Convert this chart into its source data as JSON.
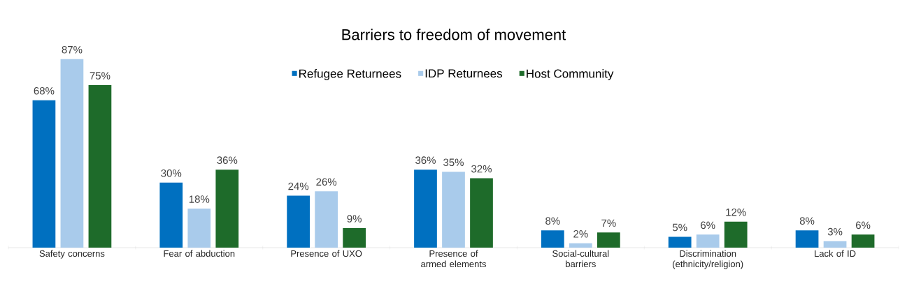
{
  "chart_data": {
    "type": "bar",
    "title": "Barriers to freedom of movement",
    "categories": [
      "Safety concerns",
      "Fear of abduction",
      "Presence of UXO",
      "Presence of armed elements",
      "Social-cultural barriers",
      "Discrimination (ethnicity/religion)",
      "Lack of ID"
    ],
    "series": [
      {
        "name": "Refugee Returnees",
        "color": "#0070c0",
        "values": [
          68,
          30,
          24,
          36,
          8,
          5,
          8
        ],
        "value_labels": [
          "68%",
          "30%",
          "24%",
          "36%",
          "8%",
          "5%",
          "8%"
        ]
      },
      {
        "name": "IDP Returnees",
        "color": "#a9cbeb",
        "values": [
          87,
          18,
          26,
          35,
          2,
          6,
          3
        ],
        "value_labels": [
          "87%",
          "18%",
          "26%",
          "35%",
          "2%",
          "6%",
          "3%"
        ]
      },
      {
        "name": "Host Community",
        "color": "#1e6b2a",
        "values": [
          75,
          36,
          9,
          32,
          7,
          12,
          6
        ],
        "value_labels": [
          "75%",
          "36%",
          "9%",
          "32%",
          "7%",
          "12%",
          "6%"
        ]
      }
    ],
    "legend": "top"
  }
}
